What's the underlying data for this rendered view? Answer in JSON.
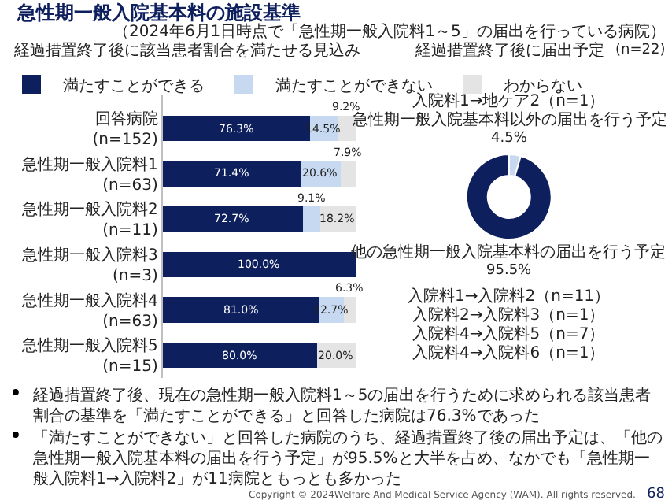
{
  "chart_data": [
    {
      "type": "bar",
      "orientation": "horizontal",
      "stacked": true,
      "title": "経過措置終了後に該当患者割合を満たせる見込み",
      "categories": [
        "回答病院 (n=152)",
        "急性期一般入院料1 (n=63)",
        "急性期一般入院料2 (n=11)",
        "急性期一般入院料3 (n=3)",
        "急性期一般入院料4 (n=63)",
        "急性期一般入院料5 (n=15)"
      ],
      "series": [
        {
          "name": "満たすことができる",
          "color": "#0d1f5c",
          "values": [
            76.3,
            71.4,
            72.7,
            100.0,
            81.0,
            80.0
          ],
          "value_labels": [
            "76.3%",
            "71.4%",
            "72.7%",
            "100.0%",
            "81.0%",
            "80.0%"
          ]
        },
        {
          "name": "満たすことができない",
          "color": "#c6d9f0",
          "values": [
            14.5,
            20.6,
            9.1,
            0,
            12.7,
            0
          ],
          "value_labels": [
            "14.5%",
            "20.6%",
            "9.1%",
            null,
            "12.7%",
            null
          ]
        },
        {
          "name": "わからない",
          "color": "#e4e4e4",
          "values": [
            9.2,
            7.9,
            18.2,
            0,
            6.3,
            20.0
          ],
          "value_labels": [
            "9.2%",
            "7.9%",
            "18.2%",
            null,
            "6.3%",
            "20.0%"
          ]
        }
      ],
      "xlim": [
        0,
        100
      ],
      "tick_labels": "y",
      "legend": "top",
      "annotations": [
        "急性期一般入院基本料の施設基準",
        "（2024年6月1日時点で「急性期一般入院料1～5」の届出を行っている病院）",
        "経過措置終了後、現在の急性期一般入院料1～5の届出を行うために求められる該当患者割合の基準を「満たすことができる」と回答した病院は76.3%であった",
        "「満たすことができない」と回答した病院のうち、経過措置終了後の届出予定は、「他の急性期一般入院基本料の届出を行う予定」が95.5%と大半を占め、なかでも「急性期一般入院料1→入院料2」が11病院ともっとも多かった",
        "Copyright © 2024Welfare And Medical Service Agency (WAM). All rights reserved.",
        "68"
      ]
    },
    {
      "type": "donut",
      "title": "経過措置終了後に届出予定",
      "categories": [
        "急性期一般入院基本料以外の届出を行う予定",
        "他の急性期一般入院基本料の届出を行う予定"
      ],
      "values": [
        4.5,
        95.5
      ],
      "value_labels": [
        "4.5%",
        "95.5%"
      ],
      "colors": [
        "#c6d9f0",
        "#0d1f5c"
      ],
      "annotations": [
        "(n=22)",
        "入院料1→地ケア2（n=1）",
        "入院料1→入院料2（n=11）",
        "入院料2→入院料3（n=1）",
        "入院料4→入院料5（n=7）",
        "入院料4→入院料6（n=1）"
      ]
    }
  ]
}
